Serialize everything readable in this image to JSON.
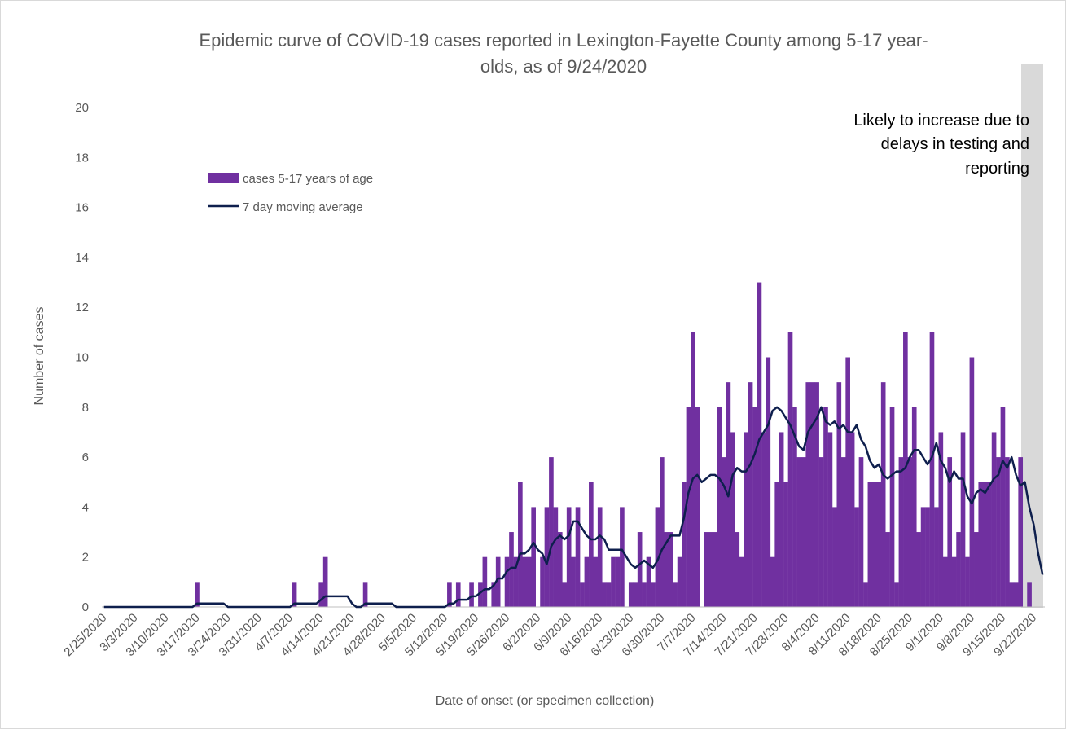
{
  "chart_data": {
    "type": "bar",
    "title_lines": [
      "Epidemic curve of COVID-19 cases reported in Lexington-Fayette County among 5-17 year-",
      "olds, as of 9/24/2020"
    ],
    "xlabel": "Date of onset (or specimen collection)",
    "ylabel": "Number of cases",
    "ylim": [
      0,
      20
    ],
    "yticks": [
      0,
      2,
      4,
      6,
      8,
      10,
      12,
      14,
      16,
      18,
      20
    ],
    "start_date": "2/25/2020",
    "end_date": "9/24/2020",
    "xtick_labels": [
      "2/25/2020",
      "3/3/2020",
      "3/10/2020",
      "3/17/2020",
      "3/24/2020",
      "3/31/2020",
      "4/7/2020",
      "4/14/2020",
      "4/21/2020",
      "4/28/2020",
      "5/5/2020",
      "5/12/2020",
      "5/19/2020",
      "5/26/2020",
      "6/2/2020",
      "6/9/2020",
      "6/16/2020",
      "6/23/2020",
      "6/30/2020",
      "7/7/2020",
      "7/14/2020",
      "7/21/2020",
      "7/28/2020",
      "8/4/2020",
      "8/11/2020",
      "8/18/2020",
      "8/25/2020",
      "9/1/2020",
      "9/8/2020",
      "9/15/2020",
      "9/22/2020"
    ],
    "grid": false,
    "legend_position": "top-left",
    "series": [
      {
        "name": "cases 5-17 years of age",
        "kind": "bar",
        "color": "#7030a0",
        "values": [
          0,
          0,
          0,
          0,
          0,
          0,
          0,
          0,
          0,
          0,
          0,
          0,
          0,
          0,
          0,
          0,
          0,
          0,
          0,
          0,
          0,
          1,
          0,
          0,
          0,
          0,
          0,
          0,
          0,
          0,
          0,
          0,
          0,
          0,
          0,
          0,
          0,
          0,
          0,
          0,
          0,
          0,
          0,
          1,
          0,
          0,
          0,
          0,
          0,
          1,
          2,
          0,
          0,
          0,
          0,
          0,
          0,
          0,
          0,
          1,
          0,
          0,
          0,
          0,
          0,
          0,
          0,
          0,
          0,
          0,
          0,
          0,
          0,
          0,
          0,
          0,
          0,
          0,
          1,
          0,
          1,
          0,
          0,
          1,
          0,
          1,
          2,
          0,
          1,
          2,
          0,
          2,
          3,
          2,
          5,
          2,
          2,
          4,
          0,
          2,
          4,
          6,
          4,
          3,
          1,
          4,
          2,
          4,
          1,
          2,
          5,
          2,
          4,
          1,
          1,
          2,
          2,
          4,
          0,
          1,
          1,
          3,
          1,
          2,
          1,
          4,
          6,
          3,
          3,
          1,
          2,
          5,
          8,
          11,
          8,
          0,
          3,
          3,
          3,
          8,
          6,
          9,
          7,
          3,
          2,
          7,
          9,
          8,
          13,
          7,
          10,
          2,
          5,
          7,
          5,
          11,
          8,
          6,
          6,
          9,
          9,
          9,
          6,
          8,
          7,
          4,
          9,
          6,
          10,
          7,
          4,
          6,
          1,
          5,
          5,
          5,
          9,
          3,
          8,
          1,
          6,
          11,
          6,
          8,
          3,
          4,
          4,
          11,
          4,
          7,
          2,
          6,
          2,
          3,
          7,
          2,
          10,
          3,
          5,
          5,
          5,
          7,
          6,
          8,
          6,
          1,
          1,
          6,
          0,
          1,
          0
        ],
        "highlight_from": "9/22/2020",
        "highlight_color": "#9b6ac0"
      },
      {
        "name": "7 day moving average",
        "kind": "line",
        "color": "#0e1f4d",
        "values": [
          0,
          0,
          0,
          0,
          0,
          0,
          0,
          0,
          0,
          0,
          0,
          0,
          0,
          0,
          0,
          0,
          0,
          0,
          0,
          0,
          0,
          0.14,
          0.14,
          0.14,
          0.14,
          0.14,
          0.14,
          0.14,
          0,
          0,
          0,
          0,
          0,
          0,
          0,
          0,
          0,
          0,
          0,
          0,
          0,
          0,
          0,
          0.14,
          0.14,
          0.14,
          0.14,
          0.14,
          0.14,
          0.29,
          0.43,
          0.43,
          0.43,
          0.43,
          0.43,
          0.43,
          0.14,
          0,
          0,
          0.14,
          0.14,
          0.14,
          0.14,
          0.14,
          0.14,
          0.14,
          0,
          0,
          0,
          0,
          0,
          0,
          0,
          0,
          0,
          0,
          0,
          0,
          0.14,
          0.14,
          0.29,
          0.29,
          0.29,
          0.43,
          0.43,
          0.57,
          0.71,
          0.71,
          0.86,
          1.14,
          1.14,
          1.43,
          1.57,
          1.57,
          2.14,
          2.14,
          2.29,
          2.57,
          2.29,
          2.14,
          1.71,
          2.43,
          2.71,
          2.86,
          2.71,
          2.86,
          3.43,
          3.43,
          3.14,
          2.86,
          2.71,
          2.71,
          2.86,
          2.71,
          2.29,
          2.29,
          2.29,
          2.29,
          2.0,
          1.71,
          1.57,
          1.71,
          1.86,
          1.71,
          1.57,
          1.86,
          2.29,
          2.57,
          2.86,
          2.86,
          2.86,
          3.57,
          4.57,
          5.14,
          5.29,
          5.0,
          5.14,
          5.29,
          5.29,
          5.14,
          4.86,
          4.43,
          5.29,
          5.57,
          5.43,
          5.43,
          5.71,
          6.14,
          6.71,
          7.0,
          7.29,
          7.86,
          8.0,
          7.86,
          7.57,
          7.29,
          6.86,
          6.43,
          6.29,
          7.0,
          7.29,
          7.57,
          8.0,
          7.43,
          7.29,
          7.43,
          7.14,
          7.29,
          7.0,
          7.0,
          7.29,
          6.71,
          6.43,
          5.86,
          5.57,
          5.71,
          5.29,
          5.14,
          5.29,
          5.43,
          5.43,
          5.57,
          6.0,
          6.29,
          6.29,
          6.0,
          5.71,
          6.0,
          6.57,
          5.86,
          5.57,
          5.0,
          5.43,
          5.14,
          5.14,
          4.43,
          4.14,
          4.57,
          4.71,
          4.57,
          4.86,
          5.14,
          5.29,
          5.86,
          5.57,
          6.0,
          5.29,
          4.86,
          5.0,
          4.0,
          3.29,
          2.14,
          1.29
        ]
      }
    ]
  },
  "annotation": {
    "lines": [
      "Likely to increase due to",
      "delays in testing and",
      "reporting"
    ],
    "shade_color": "#d9d9d9"
  },
  "colors": {
    "axis": "#bfbfbf",
    "text": "#595959"
  }
}
